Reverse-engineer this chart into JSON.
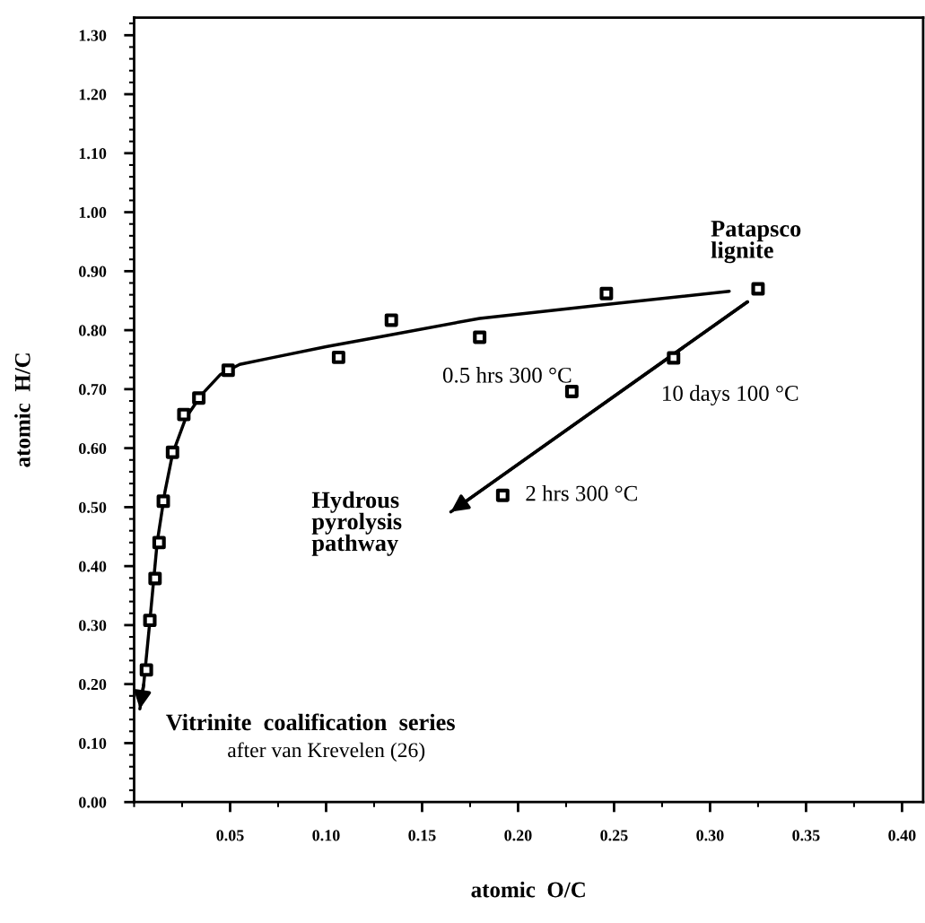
{
  "chart_data": {
    "type": "scatter",
    "xlabel": "atomic  O/C",
    "ylabel": "atomic  H/C",
    "series": [
      {
        "color": "#000000",
        "marker": "square",
        "x": [
          0.0064,
          0.0082,
          0.0109,
          0.013,
          0.0152,
          0.02,
          0.0259,
          0.0337,
          0.049,
          0.1065,
          0.134,
          0.18,
          0.246,
          0.325,
          0.281,
          0.228,
          0.192
        ],
        "values": [
          0.224,
          0.308,
          0.379,
          0.44,
          0.51,
          0.593,
          0.657,
          0.685,
          0.732,
          0.754,
          0.817,
          0.788,
          0.862,
          0.87,
          0.753,
          0.696,
          0.52
        ]
      },
      {
        "type": "line",
        "color": "#000000",
        "x": [
          0.31,
          0.25,
          0.18,
          0.13,
          0.1,
          0.07,
          0.055,
          0.045,
          0.035,
          0.027,
          0.02,
          0.016,
          0.012,
          0.008,
          0.005,
          0.003
        ],
        "values": [
          0.866,
          0.845,
          0.82,
          0.79,
          0.772,
          0.752,
          0.742,
          0.725,
          0.69,
          0.652,
          0.59,
          0.525,
          0.44,
          0.3,
          0.2,
          0.158
        ]
      },
      {
        "type": "line",
        "color": "#000000",
        "x": [
          0.3195,
          0.165
        ],
        "values": [
          0.848,
          0.492
        ]
      }
    ],
    "annotations": [
      {
        "text": "Patapsco\nlignite",
        "x": 0.325,
        "y": 0.87
      },
      {
        "text": "0.5 hrs 300 °C",
        "x": 0.18,
        "y": 0.788
      },
      {
        "text": "10 days 100 °C",
        "x": 0.281,
        "y": 0.753
      },
      {
        "text": "2 hrs 300 °C",
        "x": 0.192,
        "y": 0.52
      },
      "Hydrous\npyrolysis\npathway",
      "Vitrinite  coalification  series",
      "after van Krevelen (26)"
    ],
    "xlim": [
      0,
      0.411
    ],
    "ylim": [
      0,
      1.33
    ],
    "xticks": [
      {
        "value": 0.05,
        "label": "0.05"
      },
      {
        "value": 0.1,
        "label": "0.10"
      },
      {
        "value": 0.15,
        "label": "0.15"
      },
      {
        "value": 0.2,
        "label": "0.20"
      },
      {
        "value": 0.25,
        "label": "0.25"
      },
      {
        "value": 0.3,
        "label": "0.30"
      },
      {
        "value": 0.35,
        "label": "0.35"
      },
      {
        "value": 0.4,
        "label": "0.40"
      }
    ],
    "yticks": [
      {
        "value": 0,
        "label": "0.00"
      },
      {
        "value": 0.1,
        "label": "0.10"
      },
      {
        "value": 0.2,
        "label": "0.20"
      },
      {
        "value": 0.3,
        "label": "0.30"
      },
      {
        "value": 0.4,
        "label": "0.40"
      },
      {
        "value": 0.5,
        "label": "0.50"
      },
      {
        "value": 0.6,
        "label": "0.60"
      },
      {
        "value": 0.7,
        "label": "0.70"
      },
      {
        "value": 0.8,
        "label": "0.80"
      },
      {
        "value": 0.9,
        "label": "0.90"
      },
      {
        "value": 1.0,
        "label": "1.00"
      },
      {
        "value": 1.1,
        "label": "1.10"
      },
      {
        "value": 1.2,
        "label": "1.20"
      },
      {
        "value": 1.3,
        "label": "1.30"
      }
    ],
    "grid": false,
    "legend": false
  }
}
